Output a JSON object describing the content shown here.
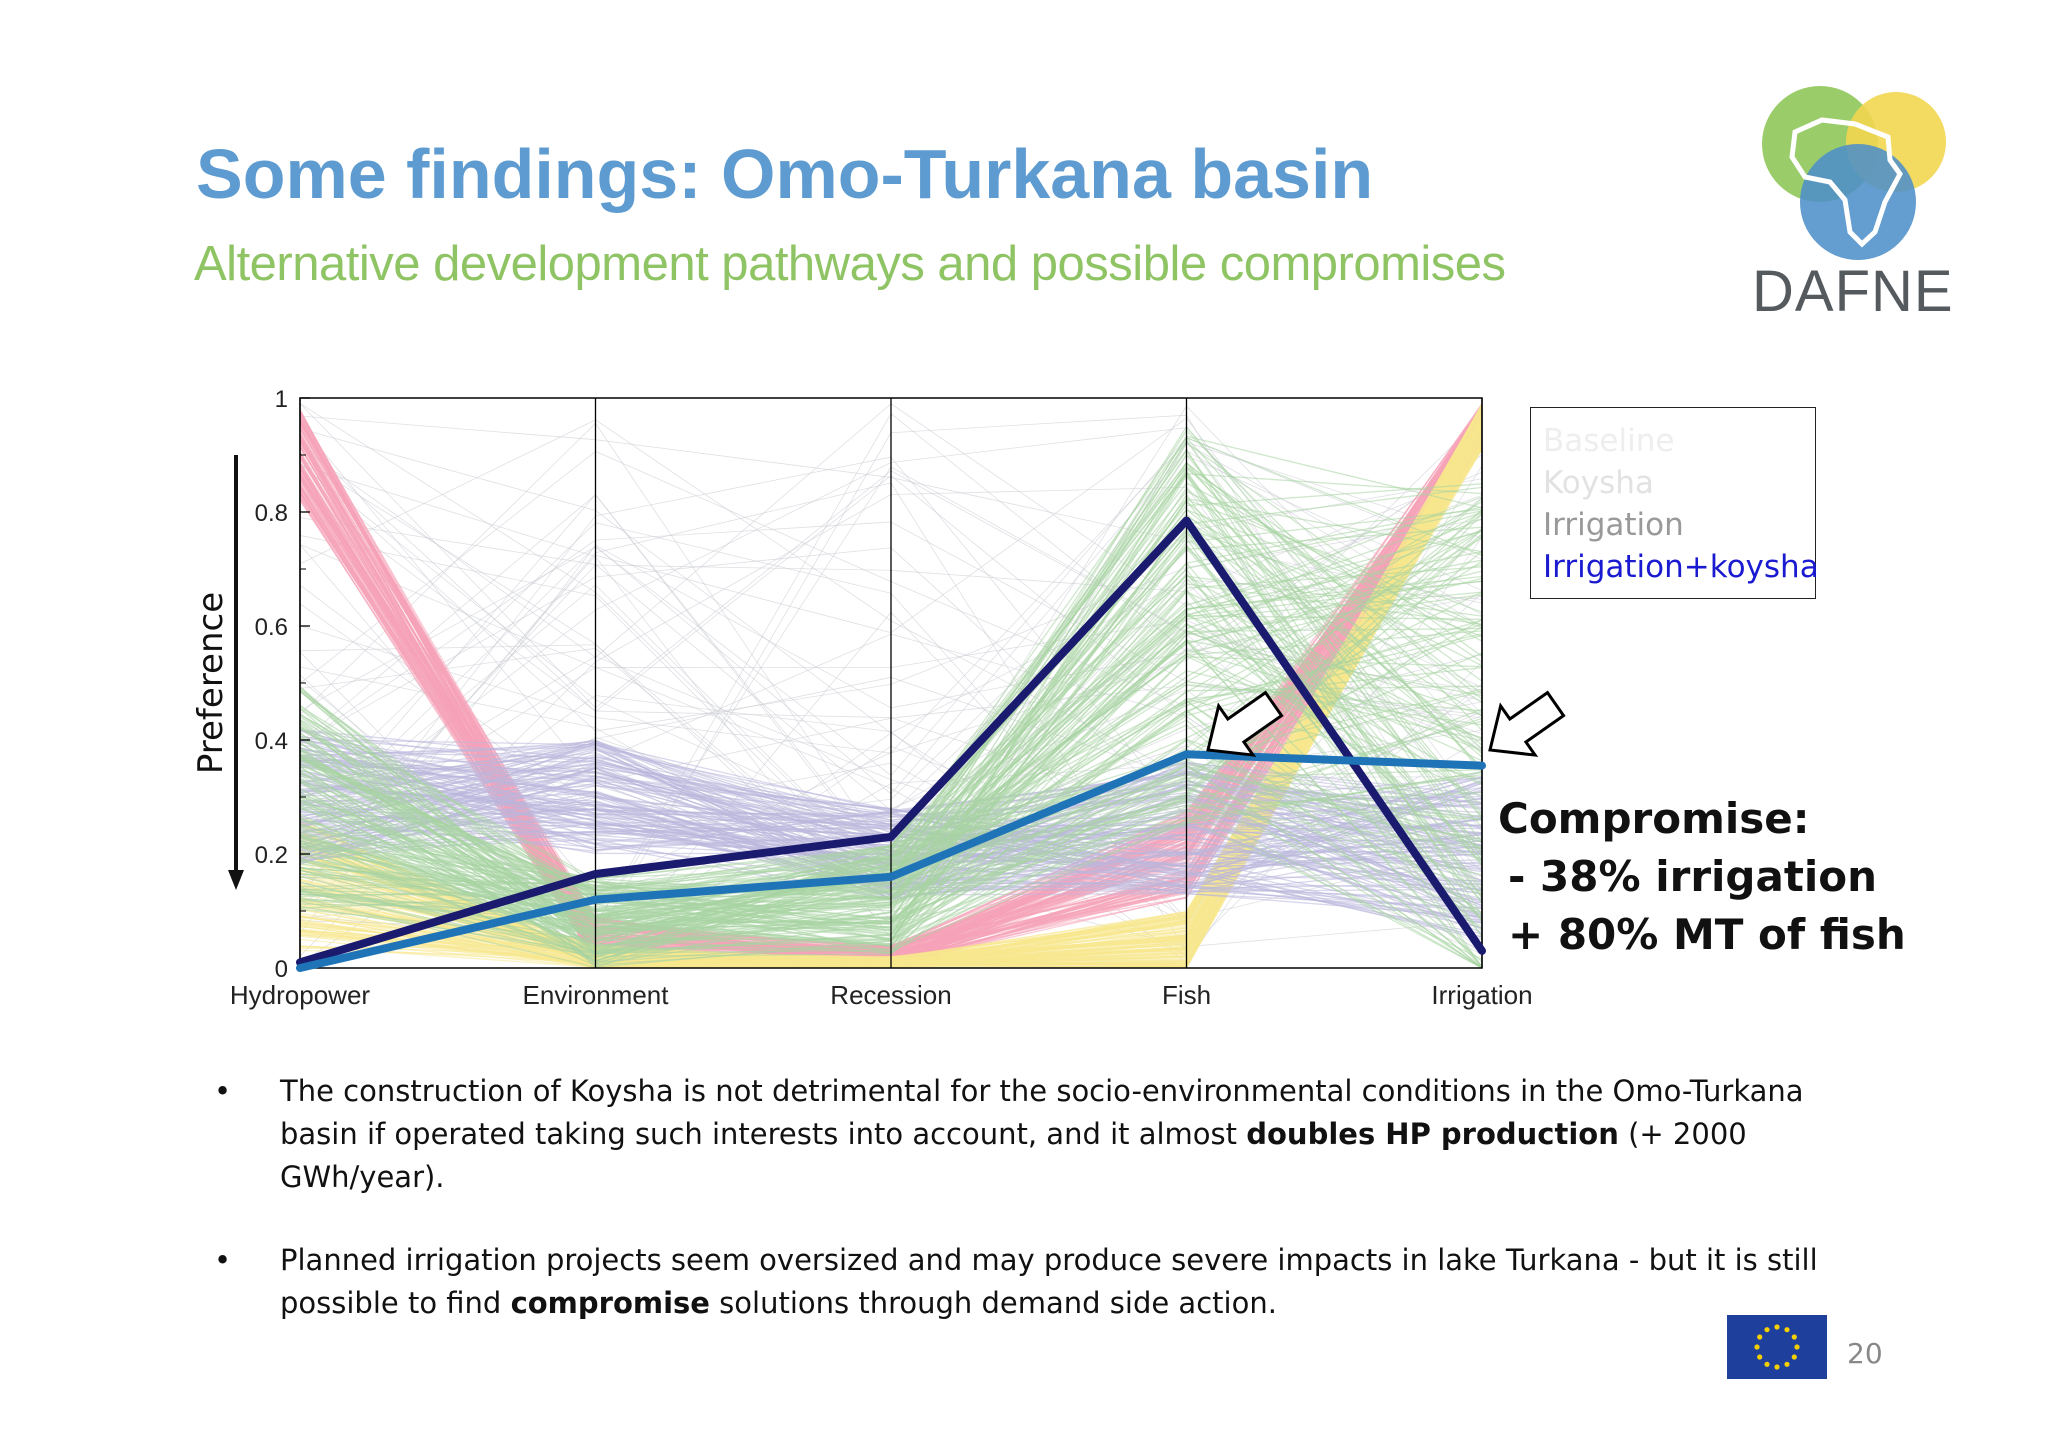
{
  "slide": {
    "title": "Some findings: Omo-Turkana basin",
    "subtitle": "Alternative development pathways and possible compromises",
    "logo_text": "DAFNE",
    "page_number": "20",
    "colors": {
      "title": "#5d9bd0",
      "subtitle": "#8fc464"
    }
  },
  "chart_data": {
    "type": "line",
    "subtype": "parallel-coordinates",
    "title": "",
    "xlabel": "",
    "ylabel": "Preference",
    "ylim": [
      0,
      1
    ],
    "y_ticks": [
      "0",
      "0.2",
      "0.4",
      "0.6",
      "0.8",
      "1"
    ],
    "categories": [
      "Hydropower",
      "Environment",
      "Recession",
      "Fish",
      "Irrigation"
    ],
    "series": [
      {
        "name": "Baseline",
        "color": "#f5a3b8",
        "values": [
          0.9,
          0.05,
          0.02,
          0.2,
          0.95
        ]
      },
      {
        "name": "Koysha",
        "color": "#f7e88e",
        "values": [
          0.15,
          0.02,
          0.01,
          0.05,
          0.95
        ]
      },
      {
        "name": "Irrigation",
        "color": "#b9b6dc",
        "values": [
          0.3,
          0.3,
          0.2,
          0.25,
          0.2
        ]
      },
      {
        "name": "Irrigation+koysha",
        "color": "#a8d4a2",
        "values": [
          0.3,
          0.08,
          0.12,
          0.6,
          0.4
        ]
      },
      {
        "name": "",
        "color": "#1a1a6e",
        "highlight": true,
        "values": [
          0.01,
          0.165,
          0.23,
          0.785,
          0.03
        ]
      },
      {
        "name": "",
        "color": "#1f74b8",
        "highlight": true,
        "values": [
          0.0,
          0.12,
          0.16,
          0.375,
          0.355
        ]
      }
    ],
    "legend": {
      "placement": "top-right",
      "entries": [
        {
          "label": "Baseline",
          "color": "#eeeeee"
        },
        {
          "label": "Koysha",
          "color": "#e2e2e2"
        },
        {
          "label": "Irrigation",
          "color": "#999999"
        },
        {
          "label": "Irrigation+koysha",
          "color": "#1a1ad0"
        }
      ]
    },
    "annotations": {
      "heading": "Compromise:",
      "line1": "- 38% irrigation",
      "line2": "+ 80% MT of fish"
    },
    "grid": false
  },
  "bullets": [
    {
      "before": "The construction of Koysha is not detrimental for the socio-environmental conditions in the Omo-Turkana basin if operated taking such interests into account, and it almost ",
      "bold": "doubles HP production",
      "after": " (+ 2000 GWh/year)."
    },
    {
      "before": "Planned irrigation projects seem oversized and may produce severe impacts in lake Turkana - but it is still possible to find ",
      "bold": "compromise",
      "after": " solutions through demand side action."
    }
  ]
}
